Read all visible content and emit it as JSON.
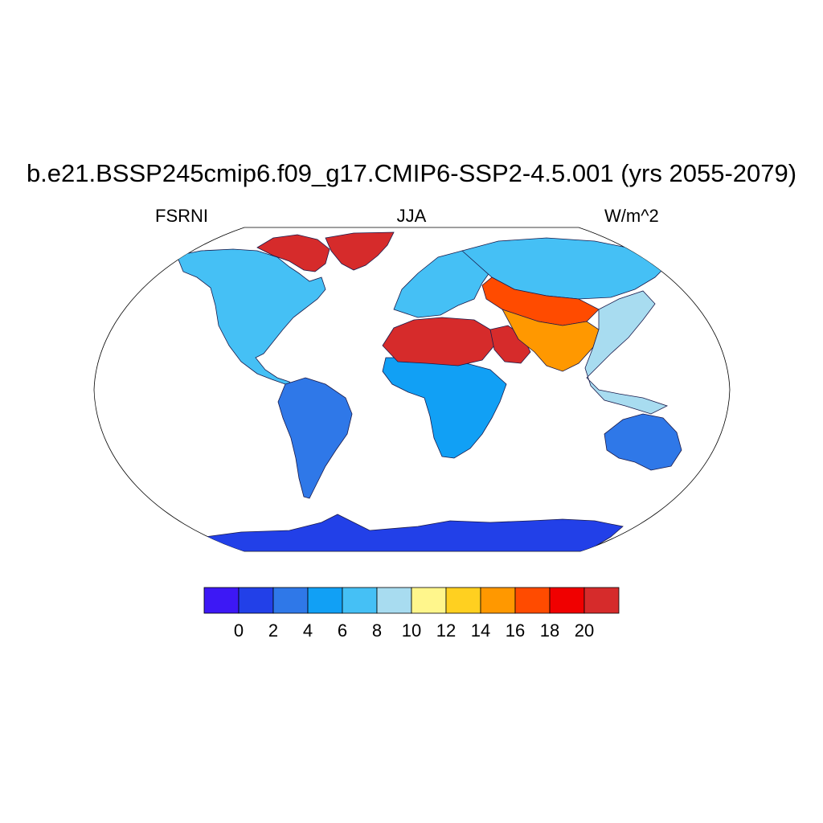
{
  "plot": {
    "title": "b.e21.BSSP245cmip6.f09_g17.CMIP6-SSP2-4.5.001 (yrs 2055-2079)",
    "left_label": "FSRNI",
    "center_label": "JJA",
    "right_label": "W/m^2"
  },
  "map": {
    "projection": "Robinson",
    "regions": [
      {
        "name": "Antarctica",
        "level": 1
      },
      {
        "name": "North America",
        "level": 4
      },
      {
        "name": "Canadian Arctic",
        "level": 11
      },
      {
        "name": "Greenland",
        "level": 11
      },
      {
        "name": "South America",
        "level": 2
      },
      {
        "name": "Europe",
        "level": 4
      },
      {
        "name": "Russia",
        "level": 4
      },
      {
        "name": "Africa",
        "level": 3
      },
      {
        "name": "Sahara",
        "level": 11
      },
      {
        "name": "Arabian Peninsula",
        "level": 11
      },
      {
        "name": "Central Asia",
        "level": 9
      },
      {
        "name": "Tibet",
        "level": 8
      },
      {
        "name": "Australia",
        "level": 2
      },
      {
        "name": "Southeast Asia",
        "level": 5
      }
    ]
  },
  "colorbar": {
    "colors": [
      "#3d18f5",
      "#2240e8",
      "#2f78e8",
      "#11a0f5",
      "#45c0f5",
      "#a8dcf0",
      "#fff68c",
      "#ffd020",
      "#ff9800",
      "#ff4b00",
      "#f00000",
      "#d62b2b"
    ],
    "tick_labels": [
      "0",
      "2",
      "4",
      "6",
      "8",
      "10",
      "12",
      "14",
      "16",
      "18",
      "20"
    ]
  }
}
